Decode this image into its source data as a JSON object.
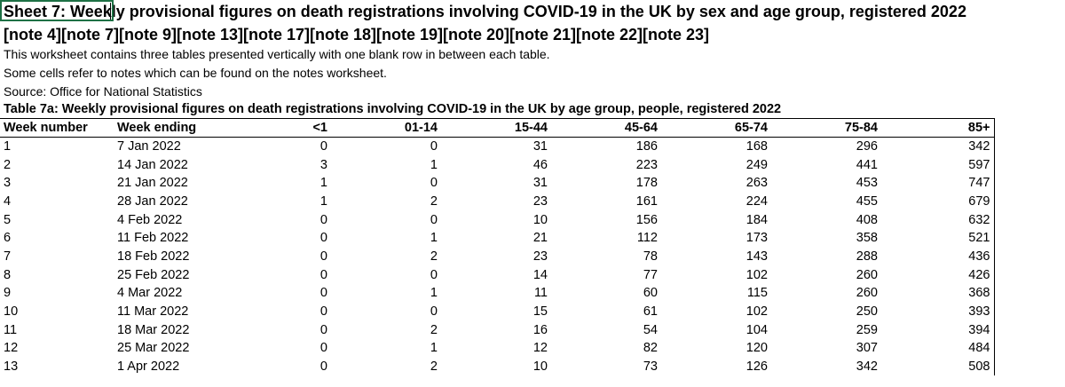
{
  "sheet": {
    "title_line1": "Sheet 7: Weekly provisional figures on death registrations involving COVID-19 in the UK by sex and age group, registered 2022",
    "title_line2": "[note 4][note 7][note 9][note 13][note 17][note 18][note 19][note 20][note 21][note 22][note 23]",
    "info": [
      "This worksheet contains three tables presented vertically with one blank row in between each table.",
      "Some cells refer to notes which can be found on the notes worksheet.",
      "Source: Office for National Statistics"
    ]
  },
  "table": {
    "title": "Table 7a: Weekly provisional figures on death registrations involving COVID-19 in the UK by age group, people, registered 2022",
    "headers": [
      "Week number",
      "Week ending",
      "<1",
      "01-14",
      "15-44",
      "45-64",
      "65-74",
      "75-84",
      "85+"
    ],
    "rows": [
      [
        "1",
        "7 Jan 2022",
        "0",
        "0",
        "31",
        "186",
        "168",
        "296",
        "342"
      ],
      [
        "2",
        "14 Jan 2022",
        "3",
        "1",
        "46",
        "223",
        "249",
        "441",
        "597"
      ],
      [
        "3",
        "21 Jan 2022",
        "1",
        "0",
        "31",
        "178",
        "263",
        "453",
        "747"
      ],
      [
        "4",
        "28 Jan 2022",
        "1",
        "2",
        "23",
        "161",
        "224",
        "455",
        "679"
      ],
      [
        "5",
        "4 Feb 2022",
        "0",
        "0",
        "10",
        "156",
        "184",
        "408",
        "632"
      ],
      [
        "6",
        "11 Feb 2022",
        "0",
        "1",
        "21",
        "112",
        "173",
        "358",
        "521"
      ],
      [
        "7",
        "18 Feb 2022",
        "0",
        "2",
        "23",
        "78",
        "143",
        "288",
        "436"
      ],
      [
        "8",
        "25 Feb 2022",
        "0",
        "0",
        "14",
        "77",
        "102",
        "260",
        "426"
      ],
      [
        "9",
        "4 Mar 2022",
        "0",
        "1",
        "11",
        "60",
        "115",
        "260",
        "368"
      ],
      [
        "10",
        "11 Mar 2022",
        "0",
        "0",
        "15",
        "61",
        "102",
        "250",
        "393"
      ],
      [
        "11",
        "18 Mar 2022",
        "0",
        "2",
        "16",
        "54",
        "104",
        "259",
        "394"
      ],
      [
        "12",
        "25 Mar 2022",
        "0",
        "1",
        "12",
        "82",
        "120",
        "307",
        "484"
      ],
      [
        "13",
        "1 Apr 2022",
        "0",
        "2",
        "10",
        "73",
        "126",
        "342",
        "508"
      ]
    ]
  }
}
